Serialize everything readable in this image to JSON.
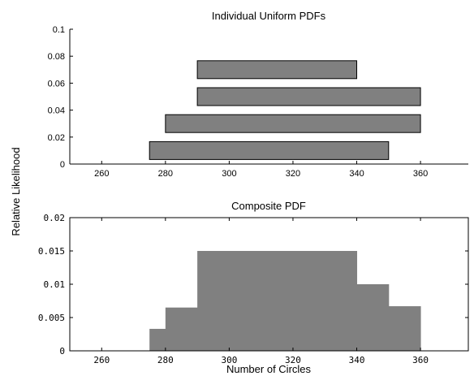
{
  "shared": {
    "ylabel": "Relative Likelihood",
    "xlabel": "Number of Circles"
  },
  "chart_data": [
    {
      "type": "bar",
      "subtype": "horizontal-range",
      "title": "Individual Uniform PDFs",
      "xlim": [
        250,
        375
      ],
      "ylim": [
        0,
        0.1
      ],
      "xticks": [
        "260",
        "280",
        "300",
        "320",
        "340",
        "360"
      ],
      "xtick_values": [
        260,
        280,
        300,
        320,
        340,
        360
      ],
      "yticks": [
        "0",
        "0.02",
        "0.04",
        "0.06",
        "0.08",
        "0.1"
      ],
      "ytick_values": [
        0,
        0.02,
        0.04,
        0.06,
        0.08,
        0.1
      ],
      "grid": false,
      "bar_color": "#808080",
      "bar_edge_color": "#000000",
      "ranges": [
        {
          "start": 275,
          "end": 350,
          "level": 0.01
        },
        {
          "start": 280,
          "end": 360,
          "level": 0.03
        },
        {
          "start": 290,
          "end": 360,
          "level": 0.05
        },
        {
          "start": 290,
          "end": 340,
          "level": 0.07
        }
      ]
    },
    {
      "type": "bar",
      "subtype": "step-histogram",
      "title": "Composite PDF",
      "xlabel": "Number of Circles",
      "xlim": [
        250,
        375
      ],
      "ylim": [
        0,
        0.02
      ],
      "xticks": [
        "260",
        "280",
        "300",
        "320",
        "340",
        "360"
      ],
      "xtick_values": [
        260,
        280,
        300,
        320,
        340,
        360
      ],
      "yticks": [
        "0",
        "0.005",
        "0.01",
        "0.015",
        "0.02"
      ],
      "ytick_values": [
        0,
        0.005,
        0.01,
        0.015,
        0.02
      ],
      "grid": false,
      "bar_color": "#808080",
      "bins": [
        {
          "start": 275,
          "end": 280,
          "value": 0.0033
        },
        {
          "start": 280,
          "end": 290,
          "value": 0.0065
        },
        {
          "start": 290,
          "end": 340,
          "value": 0.015
        },
        {
          "start": 340,
          "end": 350,
          "value": 0.01
        },
        {
          "start": 350,
          "end": 360,
          "value": 0.0067
        }
      ]
    }
  ]
}
